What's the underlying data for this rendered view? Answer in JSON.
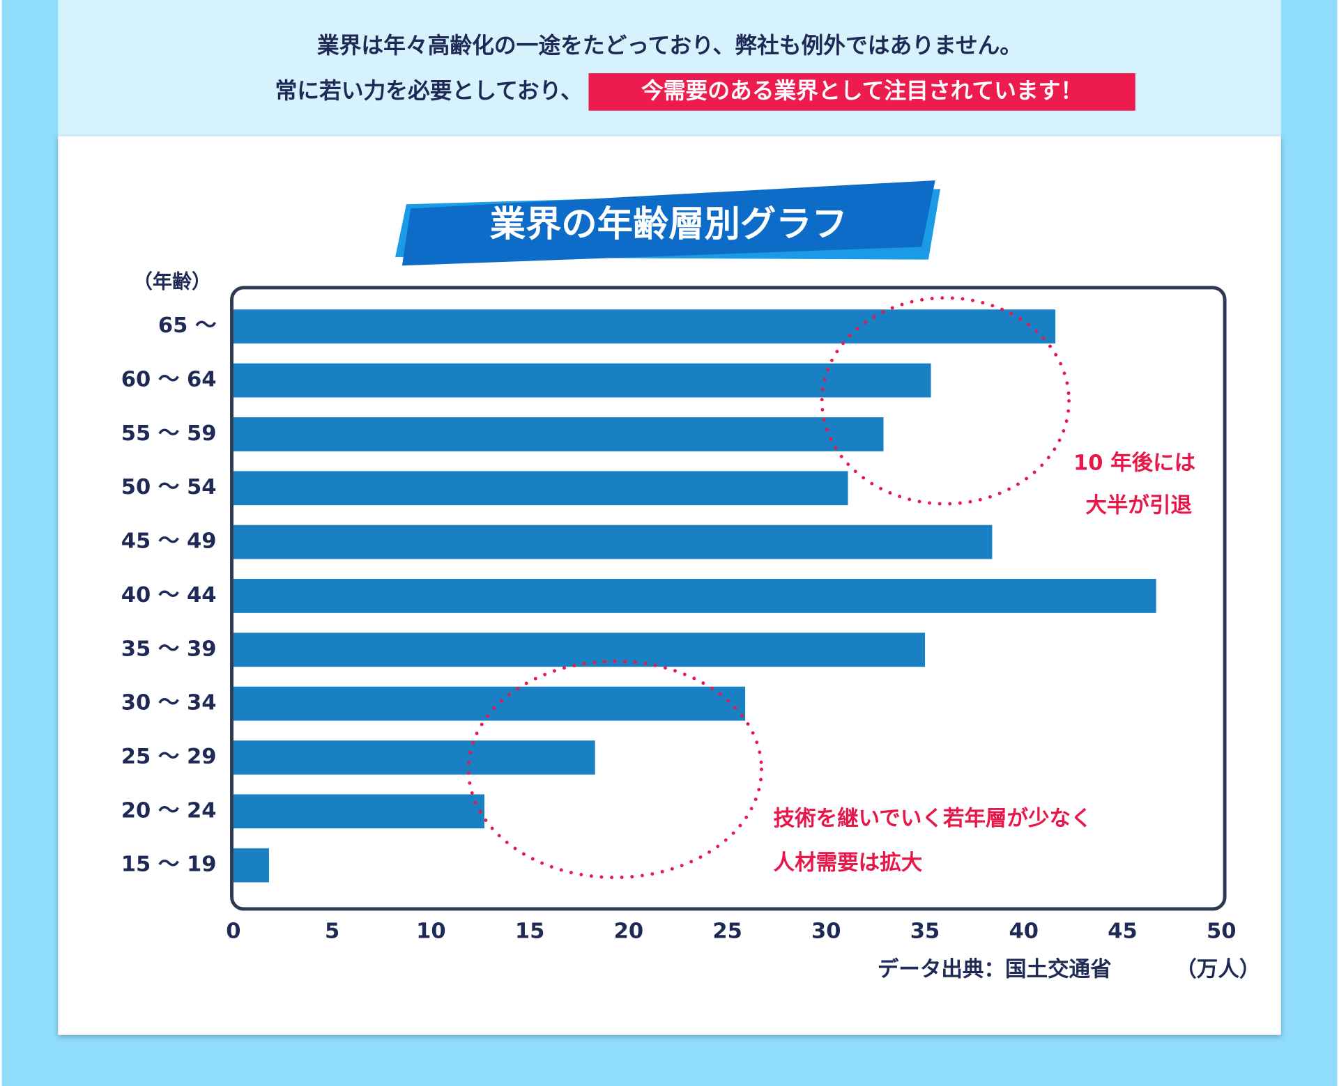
{
  "header": {
    "line1": "業界は年々高齢化の一途をたどっており、弊社も例外ではありません。",
    "line2": "常に若い力を必要としており、",
    "line2_highlight": "今需要のある業界として注目されています！"
  },
  "chart_data": {
    "type": "barh",
    "title": "業界の年齢層別グラフ",
    "y_label": "（年齢）",
    "x_label": "（万人）",
    "source": "データ出典：国土交通省",
    "categories": [
      "65 〜",
      "60 〜 64",
      "55 〜 59",
      "50 〜 54",
      "45 〜 49",
      "40 〜 44",
      "35 〜 39",
      "30 〜 34",
      "25 〜 29",
      "20 〜 24",
      "15 〜 19"
    ],
    "values": [
      41.6,
      35.3,
      32.9,
      31.1,
      38.4,
      46.7,
      35.0,
      25.9,
      18.3,
      12.7,
      1.8
    ],
    "color": "#1a80c4",
    "xlim": [
      0,
      50
    ],
    "xticks": [
      0,
      5,
      10,
      15,
      20,
      25,
      30,
      35,
      40,
      45,
      50
    ],
    "annotation_top": [
      "10 年後には",
      "大半が引退"
    ],
    "annotation_bottom": [
      "技術を継いでいく若年層が少なく",
      "人材需要は拡大"
    ]
  }
}
